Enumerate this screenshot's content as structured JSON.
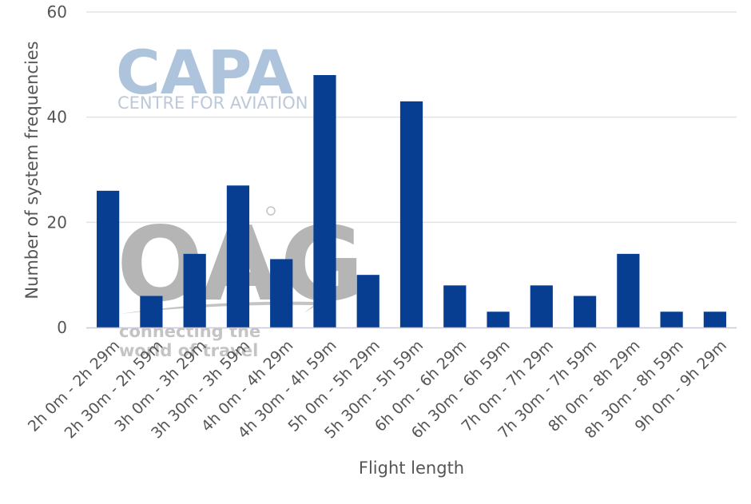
{
  "colors": {
    "bar": "#073e92",
    "grid": "#e3e3e3",
    "text": "#555555",
    "watermark_capa": "#aec3dc",
    "watermark_oag": "#b5b5b5"
  },
  "watermarks": {
    "capa_logo": "CAPA",
    "capa_tagline": "CENTRE FOR AVIATION",
    "oag_logo": "OAG",
    "oag_tagline_1": "connecting the",
    "oag_tagline_2": "world of travel"
  },
  "chart_data": {
    "type": "bar",
    "title": "",
    "xlabel": "Flight length",
    "ylabel": "Number of system frequencies",
    "ylim": [
      0,
      60
    ],
    "yticks": [
      0,
      20,
      40,
      60
    ],
    "grid": true,
    "legend": "none",
    "categories": [
      "2h 0m - 2h 29m",
      "2h 30m - 2h 59m",
      "3h 0m - 3h 29m",
      "3h 30m - 3h 59m",
      "4h 0m - 4h 29m",
      "4h 30m - 4h 59m",
      "5h 0m - 5h 29m",
      "5h 30m - 5h 59m",
      "6h 0m - 6h 29m",
      "6h 30m - 6h 59m",
      "7h 0m - 7h 29m",
      "7h 30m - 7h 59m",
      "8h 0m - 8h 29m",
      "8h 30m - 8h 59m",
      "9h 0m - 9h 29m"
    ],
    "values": [
      26,
      6,
      14,
      27,
      13,
      48,
      10,
      43,
      8,
      3,
      8,
      6,
      14,
      3,
      3
    ]
  }
}
